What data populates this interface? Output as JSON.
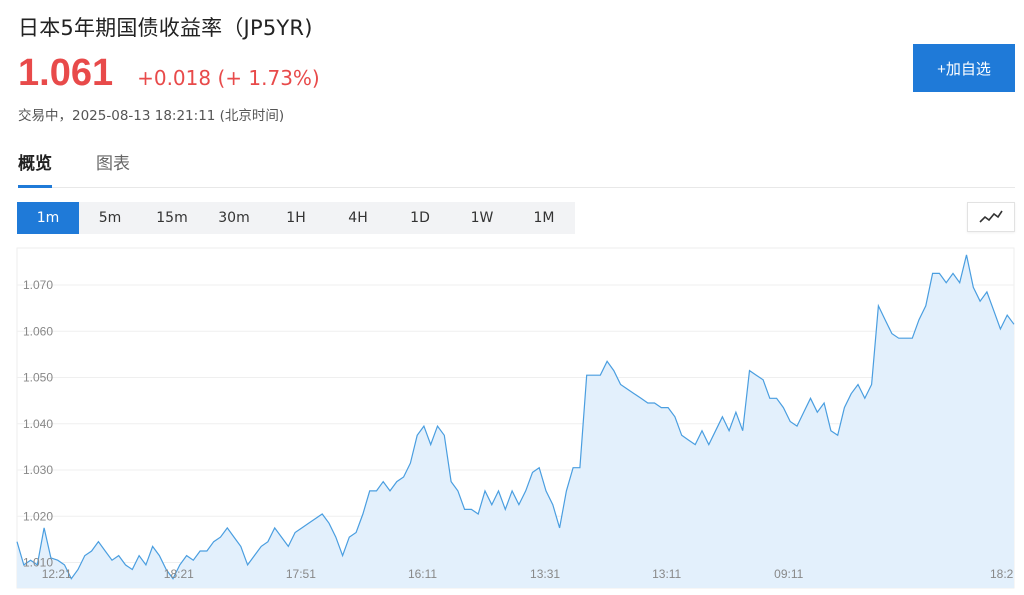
{
  "header": {
    "title": "日本5年期国债收益率（JP5YR)",
    "price": "1.061",
    "change": "+0.018 (+ 1.73%)",
    "status": "交易中，2025-08-13 18:21:11 (北京时间)",
    "add_button": "+加自选"
  },
  "tabs": [
    {
      "label": "概览",
      "active": true
    },
    {
      "label": "图表",
      "active": false
    }
  ],
  "ranges": [
    {
      "label": "1m",
      "active": true
    },
    {
      "label": "5m",
      "active": false
    },
    {
      "label": "15m",
      "active": false
    },
    {
      "label": "30m",
      "active": false
    },
    {
      "label": "1H",
      "active": false
    },
    {
      "label": "4H",
      "active": false
    },
    {
      "label": "1D",
      "active": false
    },
    {
      "label": "1W",
      "active": false
    },
    {
      "label": "1M",
      "active": false
    }
  ],
  "chart_type_icon": "line-chart-icon",
  "colors": {
    "accent": "#1f7ad8",
    "up": "#e84a4a",
    "line": "#4a9ee0",
    "fill": "#e3f0fc"
  },
  "chart_data": {
    "type": "area",
    "ylim": [
      1.0045,
      1.078
    ],
    "yticks": [
      "1.010",
      "1.020",
      "1.030",
      "1.040",
      "1.050",
      "1.060",
      "1.070"
    ],
    "xticks": [
      "12:21",
      "18:21",
      "17:51",
      "16:11",
      "13:31",
      "13:11",
      "09:11",
      "18:2"
    ],
    "xtick_index": [
      6,
      24,
      42,
      60,
      78,
      96,
      114,
      132
    ],
    "values": [
      1.0145,
      1.0095,
      1.0105,
      1.0095,
      1.0175,
      1.011,
      1.0105,
      1.0095,
      1.0065,
      1.0085,
      1.0115,
      1.0125,
      1.0145,
      1.0125,
      1.0105,
      1.0115,
      1.0095,
      1.0085,
      1.0115,
      1.0095,
      1.0135,
      1.0115,
      1.0085,
      1.0065,
      1.0095,
      1.0115,
      1.0105,
      1.0125,
      1.0125,
      1.0145,
      1.0155,
      1.0175,
      1.0155,
      1.0135,
      1.0095,
      1.0115,
      1.0135,
      1.0145,
      1.0175,
      1.0155,
      1.0135,
      1.0165,
      1.0175,
      1.0185,
      1.0195,
      1.0205,
      1.0185,
      1.0155,
      1.0115,
      1.0155,
      1.0165,
      1.0205,
      1.0255,
      1.0255,
      1.0275,
      1.0255,
      1.0275,
      1.0285,
      1.0315,
      1.0375,
      1.0395,
      1.0355,
      1.0395,
      1.0375,
      1.0275,
      1.0255,
      1.0215,
      1.0215,
      1.0205,
      1.0255,
      1.0225,
      1.0255,
      1.0215,
      1.0255,
      1.0225,
      1.0255,
      1.0295,
      1.0305,
      1.0255,
      1.0225,
      1.0175,
      1.0255,
      1.0305,
      1.0305,
      1.0505,
      1.0505,
      1.0505,
      1.0535,
      1.0515,
      1.0485,
      1.0475,
      1.0465,
      1.0455,
      1.0445,
      1.0445,
      1.0435,
      1.0435,
      1.0415,
      1.0375,
      1.0365,
      1.0355,
      1.0385,
      1.0355,
      1.0385,
      1.0415,
      1.0385,
      1.0425,
      1.0385,
      1.0515,
      1.0505,
      1.0495,
      1.0455,
      1.0455,
      1.0435,
      1.0405,
      1.0395,
      1.0425,
      1.0455,
      1.0425,
      1.0445,
      1.0385,
      1.0375,
      1.0435,
      1.0465,
      1.0485,
      1.0455,
      1.0485,
      1.0655,
      1.0625,
      1.0595,
      1.0585,
      1.0585,
      1.0585,
      1.0625,
      1.0655,
      1.0725,
      1.0725,
      1.0705,
      1.0725,
      1.0705,
      1.0765,
      1.0695,
      1.0665,
      1.0685,
      1.0645,
      1.0605,
      1.0635,
      1.0615
    ]
  }
}
